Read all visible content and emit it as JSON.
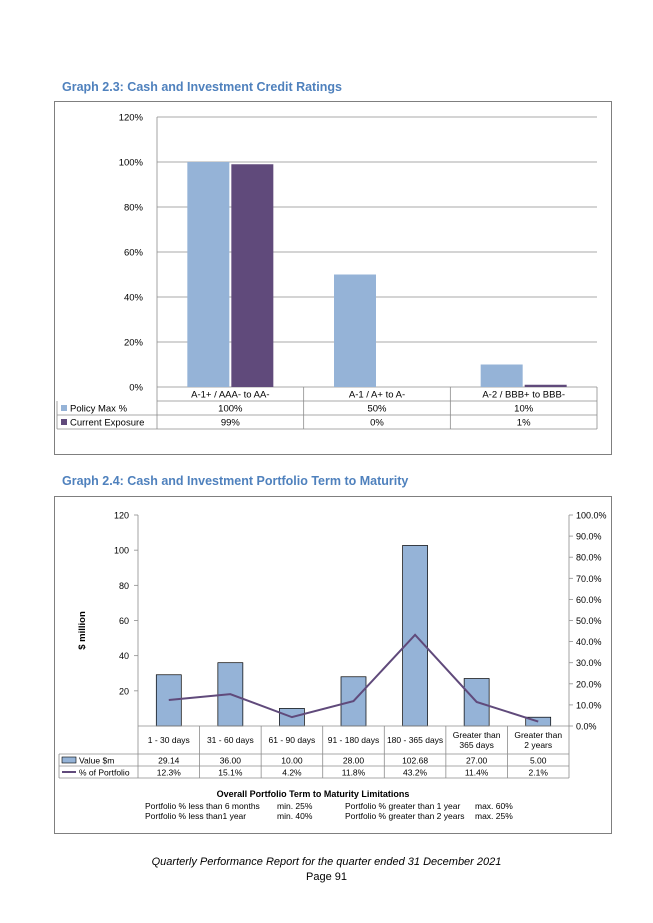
{
  "headings": {
    "graph1": "Graph 2.3:  Cash and Investment Credit Ratings",
    "graph2": "Graph 2.4:  Cash and Investment Portfolio Term to Maturity"
  },
  "footer": {
    "report": "Quarterly Performance Report for the quarter ended 31 December 2021",
    "page": "Page 91"
  },
  "colors": {
    "heading": "#4f81bd",
    "policy_bar": "#95b3d7",
    "exposure_bar": "#604a7b",
    "line": "#604a7b"
  },
  "chart_data": [
    {
      "type": "bar",
      "title": "",
      "categories": [
        "A-1+ / AAA- to AA-",
        "A-1 / A+ to A-",
        "A-2 / BBB+ to BBB-"
      ],
      "series": [
        {
          "name": "Policy Max %",
          "values": [
            100,
            50,
            10
          ],
          "labels": [
            "100%",
            "50%",
            "10%"
          ]
        },
        {
          "name": "Current Exposure",
          "values": [
            99,
            0,
            1
          ],
          "labels": [
            "99%",
            "0%",
            "1%"
          ]
        }
      ],
      "yticks": [
        "0%",
        "20%",
        "40%",
        "60%",
        "80%",
        "100%",
        "120%"
      ],
      "ylim": [
        0,
        120
      ],
      "grid": true,
      "legend": "data-table"
    },
    {
      "type": "bar",
      "title": "",
      "ylabel": "$ million",
      "categories": [
        "1 - 30 days",
        "31 - 60 days",
        "61 - 90 days",
        "91 - 180 days",
        "180 - 365 days",
        "Greater than 365 days",
        "Greater than 2 years"
      ],
      "series": [
        {
          "name": "Value $m",
          "type": "bar",
          "values": [
            29.14,
            36.0,
            10.0,
            28.0,
            102.68,
            27.0,
            5.0
          ],
          "labels": [
            "29.14",
            "36.00",
            "10.00",
            "28.00",
            "102.68",
            "27.00",
            "5.00"
          ]
        },
        {
          "name": "% of Portfolio",
          "type": "line",
          "values": [
            12.3,
            15.1,
            4.2,
            11.8,
            43.2,
            11.4,
            2.1
          ],
          "labels": [
            "12.3%",
            "15.1%",
            "4.2%",
            "11.8%",
            "43.2%",
            "11.4%",
            "2.1%"
          ]
        }
      ],
      "yticks_left": [
        "20",
        "40",
        "60",
        "80",
        "100",
        "120"
      ],
      "ylim_left": [
        0,
        120
      ],
      "yticks_right": [
        "0.0%",
        "10.0%",
        "20.0%",
        "30.0%",
        "40.0%",
        "50.0%",
        "60.0%",
        "70.0%",
        "80.0%",
        "90.0%",
        "100.0%"
      ],
      "ylim_right": [
        0,
        100
      ],
      "grid": false,
      "legend": "data-table",
      "limitations": {
        "title": "Overall Portfolio  Term to Maturity Limitations",
        "rows": [
          [
            "Portfolio % less than 6 months",
            "min. 25%",
            "Portfolio % greater than 1 year",
            "max. 60%"
          ],
          [
            "Portfolio % less than1 year",
            "min. 40%",
            "Portfolio % greater than 2 years",
            "max. 25%"
          ]
        ]
      }
    }
  ]
}
